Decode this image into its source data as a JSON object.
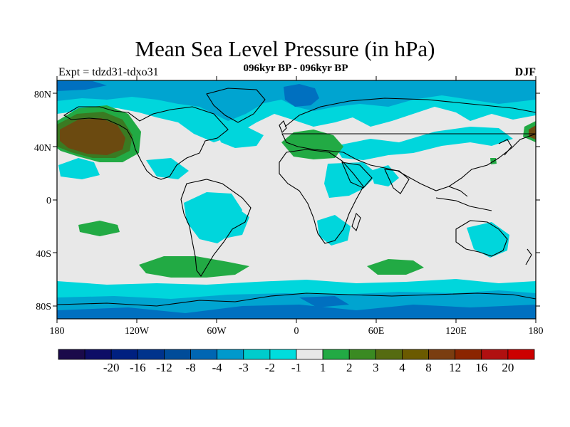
{
  "title": "Mean Sea Level Pressure (in hPa)",
  "subtitle": "096kyr BP - 096kyr BP",
  "left_label": "Expt = tdzd31-tdxo31",
  "right_label": "DJF",
  "lat_ticks": [
    "80N",
    "40N",
    "0",
    "40S",
    "80S"
  ],
  "lon_ticks": [
    "180",
    "120W",
    "60W",
    "0",
    "60E",
    "120E",
    "180"
  ],
  "colorbar": {
    "colors": [
      "#1a0a4a",
      "#0d0d66",
      "#002080",
      "#00338c",
      "#004c99",
      "#0066b3",
      "#0099cc",
      "#00cccc",
      "#00dddd",
      "#e8e8e8",
      "#22aa44",
      "#3a8a22",
      "#556b11",
      "#6b5a00",
      "#7a3d10",
      "#8b2500",
      "#b01010",
      "#cc0000"
    ],
    "labels": [
      "-20",
      "-16",
      "-12",
      "-8",
      "-4",
      "-3",
      "-2",
      "-1",
      "1",
      "2",
      "3",
      "4",
      "8",
      "12",
      "16",
      "20"
    ]
  },
  "colors": {
    "background": "#e8e8e8",
    "cyan": "#00d6dc",
    "sky": "#00a4d0",
    "blue": "#0070c0",
    "green": "#22aa44",
    "olive": "#3a7a22",
    "brown": "#6b4a10"
  }
}
